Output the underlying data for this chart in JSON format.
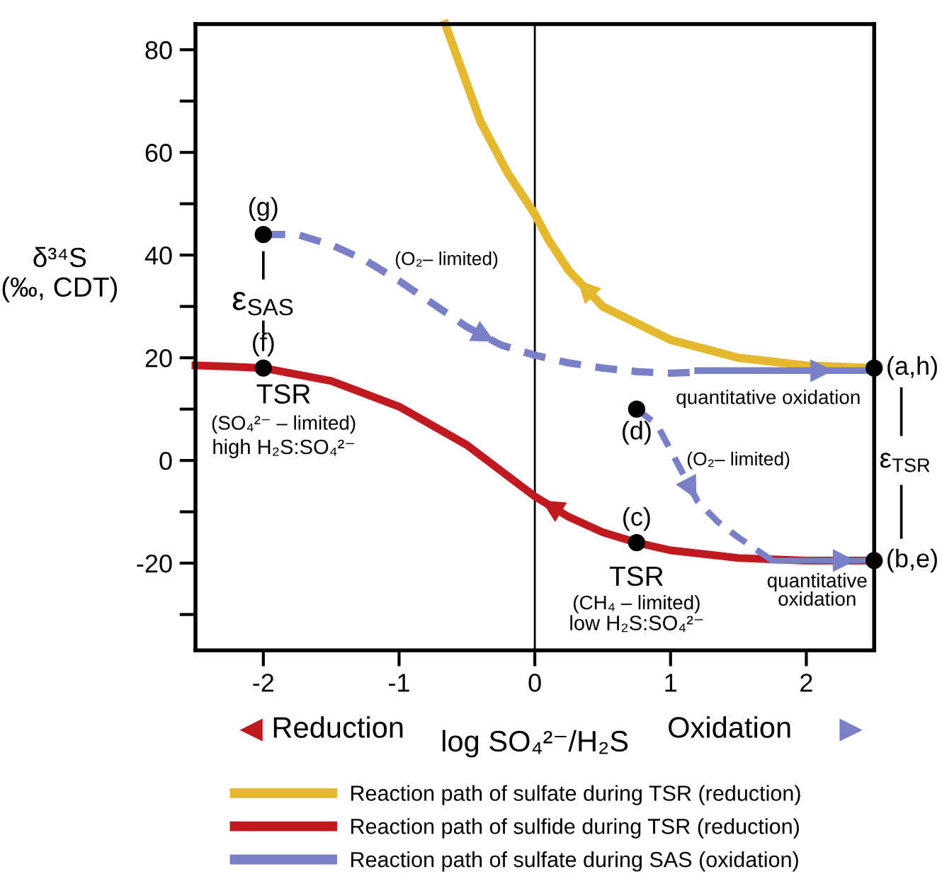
{
  "chart_data": {
    "type": "line",
    "xlabel": "log SO₄²⁻/H₂S",
    "ylabel": "δ³⁴S\n(‰, CDT)",
    "xlim": [
      -2.5,
      2.5
    ],
    "xticks": [
      -2,
      -1,
      0,
      1,
      2
    ],
    "ylim": [
      -37,
      85
    ],
    "yticks": [
      {
        "value": -30,
        "label": null
      },
      -20,
      {
        "value": -10,
        "label": null
      },
      0,
      {
        "value": 10,
        "label": null
      },
      20,
      {
        "value": 30,
        "label": null
      },
      40,
      {
        "value": 50,
        "label": null
      },
      60,
      {
        "value": 70,
        "label": null
      },
      80
    ],
    "grid": false,
    "legend": "bottom",
    "ref_lines": [
      {
        "axis": "x",
        "value": 0,
        "color": "#000000",
        "line_style": "solid"
      }
    ],
    "series": [
      {
        "name": "Reaction path of sulfate during TSR (reduction)",
        "color": "#e6b82e",
        "line_style": "solid",
        "x": [
          2.5,
          2,
          1.5,
          1,
          0.5,
          0.25,
          0.1,
          0,
          -0.2,
          -0.4,
          -0.66
        ],
        "values": [
          18,
          18.5,
          20,
          23.5,
          30,
          37,
          43,
          48,
          56,
          66,
          85
        ]
      },
      {
        "name": "Reaction path of sulfide during TSR (reduction)",
        "color": "#c0191f",
        "line_style": "solid",
        "x": [
          2.5,
          2,
          1.5,
          1,
          0.75,
          0.5,
          0.25,
          0,
          -0.25,
          -0.5,
          -1,
          -1.5,
          -2,
          -2.25,
          -2.5
        ],
        "values": [
          -19.5,
          -19.5,
          -19,
          -17.5,
          -16,
          -14,
          -11,
          -7,
          -2,
          3,
          10.5,
          15.5,
          18,
          18.3,
          18.5
        ]
      },
      {
        "color": "#7a80c8",
        "line_style": "dashed",
        "x": [
          -2,
          -1.75,
          -1.5,
          -1.25,
          -1,
          -0.75,
          -0.5,
          -0.25,
          0,
          0.25,
          0.5,
          0.75,
          1,
          1.2
        ],
        "values": [
          44,
          44,
          42,
          39,
          35,
          30.5,
          26,
          22.5,
          20.5,
          19,
          18,
          17.3,
          17,
          17.2
        ]
      },
      {
        "name": "Reaction path of sulfate during SAS (oxidation)",
        "color": "#7a80c8",
        "line_style": "solid",
        "x": [
          1.2,
          2.5
        ],
        "values": [
          17.5,
          17.5
        ]
      },
      {
        "color": "#7a80c8",
        "line_style": "dashed",
        "x": [
          0.75,
          0.9,
          1,
          1.1,
          1.2,
          1.35,
          1.5,
          1.75
        ],
        "values": [
          10,
          7,
          2,
          -3,
          -8,
          -12,
          -15,
          -19.5
        ]
      },
      {
        "color": "#7a80c8",
        "line_style": "solid",
        "x": [
          1.75,
          2.5
        ],
        "values": [
          -19.5,
          -19.5
        ]
      },
      {
        "type": "scatter",
        "color": "#000000",
        "marker": "circle",
        "x": [
          2.5,
          2.5,
          0.75,
          0.75,
          -2,
          -2
        ],
        "values": [
          18,
          -19.5,
          -16,
          10,
          18,
          44
        ]
      }
    ],
    "annotations": [
      {
        "text": "(a,h)",
        "x": 2.5,
        "y": 18
      },
      {
        "text": "(b,e)",
        "x": 2.5,
        "y": -19.5
      },
      {
        "text": "(c)",
        "x": 0.75,
        "y": -16
      },
      {
        "text": "(d)",
        "x": 0.75,
        "y": 10
      },
      {
        "text": "(f)",
        "x": -2,
        "y": 18
      },
      {
        "text": "(g)",
        "x": -2,
        "y": 44
      },
      "ε$_{SAS}$",
      "ε$_{TSR}$",
      "TSR",
      "(SO₄²⁻ – limited)",
      "high H₂S:SO₄²⁻",
      "(O₂– limited)",
      "quantitative oxidation",
      "(O₂– limited)",
      "TSR",
      "(CH₄ – limited)",
      "low H₂S:SO₄²⁻",
      "quantitative\noxidation",
      "Reduction",
      "Oxidation"
    ]
  }
}
